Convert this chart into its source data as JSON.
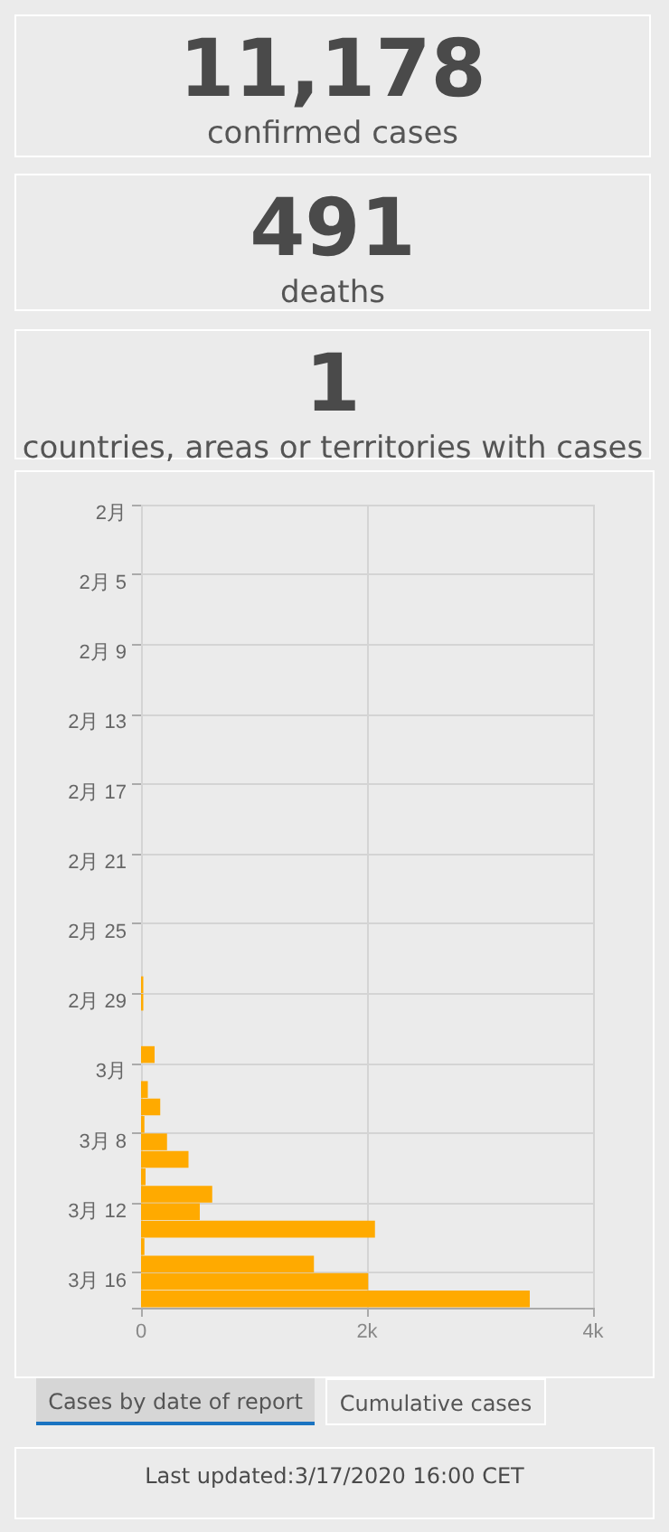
{
  "chart_data": [
    {
      "type": "other",
      "title": "11,178",
      "subtitle": "confirmed cases"
    },
    {
      "type": "other",
      "title": "491",
      "subtitle": "deaths"
    },
    {
      "type": "other",
      "title": "1",
      "subtitle": "countries, areas or territories with cases"
    },
    {
      "type": "bar",
      "orientation": "horizontal",
      "categories": [
        "2月",
        null,
        null,
        null,
        "2月 5",
        null,
        null,
        null,
        "2月 9",
        null,
        null,
        null,
        "2月 13",
        null,
        null,
        null,
        "2月 17",
        null,
        null,
        null,
        "2月 21",
        null,
        null,
        null,
        "2月 25",
        null,
        null,
        null,
        "2月 29",
        null,
        null,
        null,
        "3月",
        null,
        null,
        null,
        "3月 8",
        null,
        null,
        null,
        "3月 12",
        null,
        null,
        null,
        "3月 16",
        null
      ],
      "values": [
        0,
        0,
        0,
        0,
        0,
        0,
        0,
        0,
        0,
        0,
        0,
        0,
        0,
        0,
        0,
        0,
        0,
        0,
        0,
        0,
        0,
        0,
        0,
        0,
        0,
        0,
        0,
        20,
        20,
        0,
        0,
        120,
        0,
        60,
        170,
        30,
        230,
        420,
        40,
        630,
        520,
        2070,
        30,
        1530,
        2010,
        3440
      ],
      "color": "#ffaa00",
      "xlim": [
        0,
        4000
      ],
      "xticks": [
        0,
        {
          "value": 2000,
          "label": "2k"
        },
        {
          "value": 4000,
          "label": "4k"
        }
      ],
      "grid": true,
      "annotations": [
        "Cases by date of report",
        "Cumulative cases",
        "Last updated:3/17/2020 16:00 CET"
      ]
    }
  ]
}
